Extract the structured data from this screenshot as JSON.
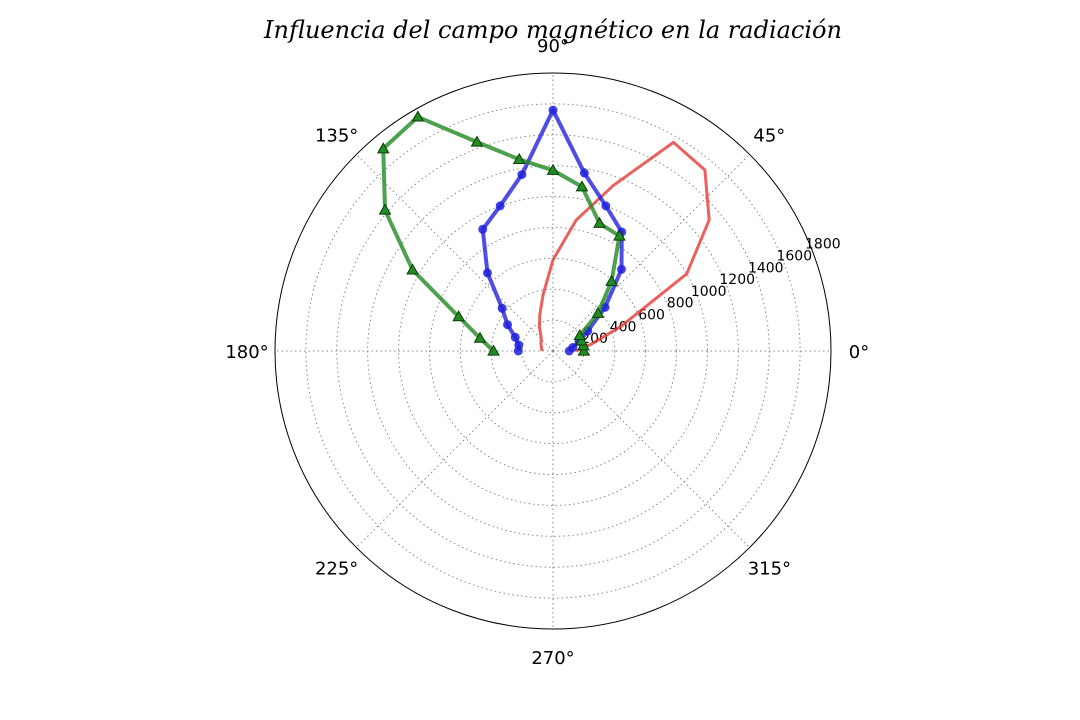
{
  "chart_data": {
    "type": "polar-line",
    "title": "Influencia del campo magnético en la radiación",
    "angle_tick_labels": [
      "0°",
      "45°",
      "90°",
      "135°",
      "180°",
      "225°",
      "270°",
      "315°"
    ],
    "angle_ticks_deg": [
      0,
      45,
      90,
      135,
      180,
      225,
      270,
      315
    ],
    "radial_tick_labels": [
      "200",
      "400",
      "600",
      "800",
      "1000",
      "1200",
      "1400",
      "1600",
      "1800"
    ],
    "radial_ticks": [
      200,
      400,
      600,
      800,
      1000,
      1200,
      1400,
      1600,
      1800
    ],
    "rlim": [
      0,
      1800
    ],
    "radial_label_angle_deg": 22.5,
    "grid": true,
    "series": [
      {
        "color": "#e53935",
        "marker": "none",
        "points": [
          {
            "theta": 0,
            "r": 150
          },
          {
            "theta": 10,
            "r": 250
          },
          {
            "theta": 20,
            "r": 470
          },
          {
            "theta": 30,
            "r": 1000
          },
          {
            "theta": 40,
            "r": 1320
          },
          {
            "theta": 50,
            "r": 1530
          },
          {
            "theta": 60,
            "r": 1560
          },
          {
            "theta": 70,
            "r": 1140
          },
          {
            "theta": 80,
            "r": 860
          },
          {
            "theta": 90,
            "r": 590
          },
          {
            "theta": 100,
            "r": 370
          },
          {
            "theta": 110,
            "r": 250
          },
          {
            "theta": 120,
            "r": 175
          },
          {
            "theta": 130,
            "r": 120
          },
          {
            "theta": 140,
            "r": 100
          },
          {
            "theta": 150,
            "r": 90
          },
          {
            "theta": 160,
            "r": 80
          },
          {
            "theta": 170,
            "r": 75
          },
          {
            "theta": 180,
            "r": 70
          }
        ]
      },
      {
        "color": "#2222dd",
        "marker": "circle",
        "points": [
          {
            "theta": 0,
            "r": 105
          },
          {
            "theta": 10,
            "r": 130
          },
          {
            "theta": 20,
            "r": 180
          },
          {
            "theta": 30,
            "r": 260
          },
          {
            "theta": 40,
            "r": 440
          },
          {
            "theta": 50,
            "r": 690
          },
          {
            "theta": 60,
            "r": 890
          },
          {
            "theta": 70,
            "r": 1000
          },
          {
            "theta": 80,
            "r": 1170
          },
          {
            "theta": 90,
            "r": 1560
          },
          {
            "theta": 100,
            "r": 1160
          },
          {
            "theta": 110,
            "r": 1000
          },
          {
            "theta": 120,
            "r": 910
          },
          {
            "theta": 130,
            "r": 660
          },
          {
            "theta": 140,
            "r": 430
          },
          {
            "theta": 150,
            "r": 340
          },
          {
            "theta": 160,
            "r": 260
          },
          {
            "theta": 170,
            "r": 225
          },
          {
            "theta": 180,
            "r": 225
          }
        ]
      },
      {
        "color": "#228b22",
        "marker": "triangle",
        "points": [
          {
            "theta": 0,
            "r": 200
          },
          {
            "theta": 10,
            "r": 200
          },
          {
            "theta": 20,
            "r": 195
          },
          {
            "theta": 30,
            "r": 200
          },
          {
            "theta": 40,
            "r": 380
          },
          {
            "theta": 50,
            "r": 590
          },
          {
            "theta": 60,
            "r": 860
          },
          {
            "theta": 70,
            "r": 880
          },
          {
            "theta": 80,
            "r": 1080
          },
          {
            "theta": 90,
            "r": 1170
          },
          {
            "theta": 100,
            "r": 1260
          },
          {
            "theta": 110,
            "r": 1440
          },
          {
            "theta": 120,
            "r": 1750
          },
          {
            "theta": 130,
            "r": 1710
          },
          {
            "theta": 140,
            "r": 1420
          },
          {
            "theta": 150,
            "r": 1050
          },
          {
            "theta": 160,
            "r": 650
          },
          {
            "theta": 170,
            "r": 480
          },
          {
            "theta": 180,
            "r": 385
          }
        ]
      }
    ]
  }
}
